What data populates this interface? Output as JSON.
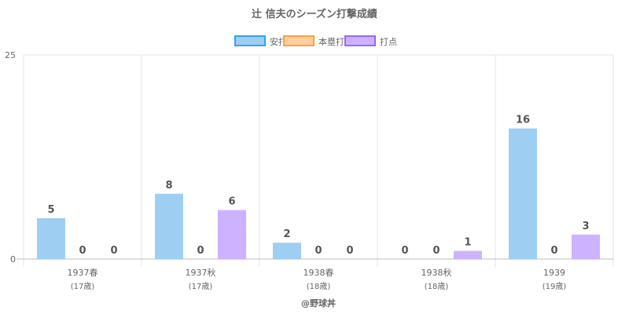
{
  "chart_data": {
    "type": "bar",
    "title": "辻 信夫のシーズン打撃成績",
    "categories": [
      "1937春",
      "1937秋",
      "1938春",
      "1938秋",
      "1939"
    ],
    "category_sublabels": [
      "(17歳)",
      "(17歳)",
      "(18歳)",
      "(18歳)",
      "(19歳)"
    ],
    "series": [
      {
        "name": "安打",
        "values": [
          5,
          8,
          2,
          0,
          16
        ],
        "color": "#9ecff3",
        "border": "#36a2eb"
      },
      {
        "name": "本塁打",
        "values": [
          0,
          0,
          0,
          0,
          0
        ],
        "color": "#ffcf9f",
        "border": "#ff9f40"
      },
      {
        "name": "打点",
        "values": [
          0,
          6,
          0,
          1,
          3
        ],
        "color": "#cdb3ff",
        "border": "#9966ff"
      }
    ],
    "ylim": [
      0,
      25
    ],
    "yticks": [
      "0",
      "25"
    ],
    "grid": true,
    "legend_position": "top",
    "credit": "@野球丼"
  }
}
